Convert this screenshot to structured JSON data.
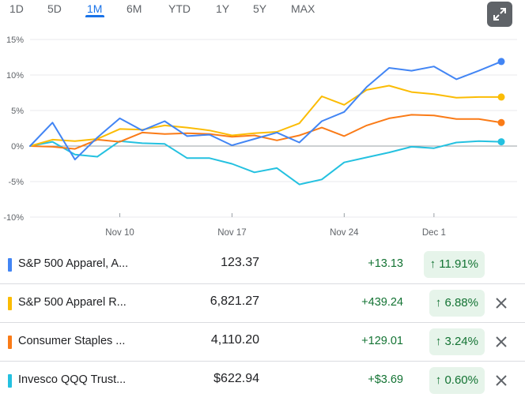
{
  "range_tabs": [
    "1D",
    "5D",
    "1M",
    "6M",
    "YTD",
    "1Y",
    "5Y",
    "MAX"
  ],
  "active_tab": "1M",
  "chart_data": {
    "type": "line",
    "x_tick_labels": [
      "Nov 10",
      "Nov 17",
      "Nov 24",
      "Dec 1"
    ],
    "y_tick_labels": [
      "15%",
      "10%",
      "5%",
      "0%",
      "-5%",
      "-10%"
    ],
    "ylim": [
      -10,
      15
    ],
    "y_unit": "%",
    "grid": true,
    "series": [
      {
        "name": "S&P 500 Apparel, A...",
        "color": "#4285f4",
        "values": [
          0,
          3.3,
          -1.9,
          1.2,
          3.9,
          2.2,
          3.5,
          1.4,
          1.6,
          0.1,
          1.0,
          1.9,
          0.5,
          3.5,
          4.8,
          8.3,
          11.0,
          10.6,
          11.2,
          9.4,
          10.6,
          11.9
        ]
      },
      {
        "name": "S&P 500 Apparel R...",
        "color": "#fbbc04",
        "values": [
          0,
          0.9,
          0.7,
          1.0,
          2.4,
          2.3,
          2.9,
          2.6,
          2.2,
          1.5,
          1.8,
          2.0,
          3.2,
          7.0,
          5.8,
          7.9,
          8.5,
          7.6,
          7.3,
          6.8,
          6.9,
          6.9
        ]
      },
      {
        "name": "Consumer Staples ...",
        "color": "#fa7b17",
        "values": [
          0,
          -0.1,
          -0.4,
          0.9,
          0.6,
          1.9,
          1.7,
          1.8,
          1.7,
          1.3,
          1.5,
          0.8,
          1.5,
          2.6,
          1.4,
          2.9,
          3.9,
          4.4,
          4.3,
          3.8,
          3.8,
          3.3
        ]
      },
      {
        "name": "Invesco QQQ Trust...",
        "color": "#24c1e0",
        "values": [
          0,
          0.6,
          -1.2,
          -1.5,
          0.7,
          0.4,
          0.3,
          -1.7,
          -1.7,
          -2.5,
          -3.7,
          -3.1,
          -5.4,
          -4.7,
          -2.3,
          -1.6,
          -0.9,
          -0.1,
          -0.3,
          0.5,
          0.7,
          0.6
        ]
      }
    ]
  },
  "table": {
    "rows": [
      {
        "name": "S&P 500 Apparel, A...",
        "color": "#4285f4",
        "price": "123.37",
        "change": "+13.13",
        "pct": "11.91%",
        "removable": false
      },
      {
        "name": "S&P 500 Apparel R...",
        "color": "#fbbc04",
        "price": "6,821.27",
        "change": "+439.24",
        "pct": "6.88%",
        "removable": true
      },
      {
        "name": "Consumer Staples ...",
        "color": "#fa7b17",
        "price": "4,110.20",
        "change": "+129.01",
        "pct": "3.24%",
        "removable": true
      },
      {
        "name": "Invesco QQQ Trust...",
        "color": "#24c1e0",
        "price": "$622.94",
        "change": "+$3.69",
        "pct": "0.60%",
        "removable": true
      }
    ],
    "up_arrow": "↑"
  },
  "icons": {
    "expand": "expand-icon",
    "close": "close-icon",
    "arrow": "arrow-up-icon"
  }
}
